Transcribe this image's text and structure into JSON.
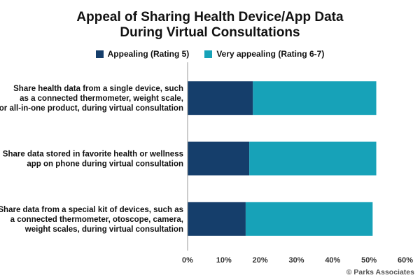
{
  "chart_data": {
    "type": "bar",
    "orientation": "horizontal",
    "stacked": true,
    "title_lines": [
      "Appeal of Sharing Health Device/App Data",
      "During Virtual Consultations"
    ],
    "categories": [
      [
        "Share health data from a single device, such",
        "as a connected thermometer, weight scale,",
        "or all-in-one product, during virtual consultation"
      ],
      [
        "Share data stored in favorite health or wellness",
        "app on phone during virtual consultation"
      ],
      [
        "Share data from a special kit of devices, such as",
        "a connected thermometer, otoscope, camera,",
        "weight scales, during virtual consultation"
      ]
    ],
    "series": [
      {
        "name": "Appealing (Rating 5)",
        "color": "#153e6b",
        "values": [
          18,
          17,
          16
        ]
      },
      {
        "name": "Very appealing (Rating 6-7)",
        "color": "#17a2b8",
        "values": [
          34,
          35,
          35
        ]
      }
    ],
    "xlim": [
      0,
      60
    ],
    "xticks": [
      0,
      10,
      20,
      30,
      40,
      50,
      60
    ],
    "tick_format": "percent",
    "grid": false,
    "legend_position": "top"
  },
  "credit": "© Parks Associates"
}
